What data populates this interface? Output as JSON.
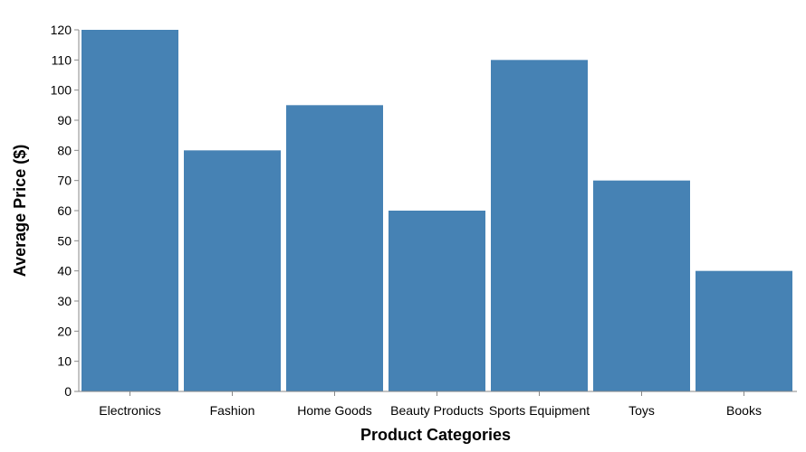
{
  "chart_data": {
    "type": "bar",
    "categories": [
      "Electronics",
      "Fashion",
      "Home Goods",
      "Beauty Products",
      "Sports Equipment",
      "Toys",
      "Books"
    ],
    "values": [
      120,
      80,
      95,
      60,
      110,
      70,
      40
    ],
    "xlabel": "Product Categories",
    "ylabel": "Average Price ($)",
    "ylim": [
      0,
      120
    ],
    "yticks": [
      0,
      10,
      20,
      30,
      40,
      50,
      60,
      70,
      80,
      90,
      100,
      110,
      120
    ],
    "grid": false,
    "bar_color": "#4682b4",
    "axis_color": "#888888"
  }
}
